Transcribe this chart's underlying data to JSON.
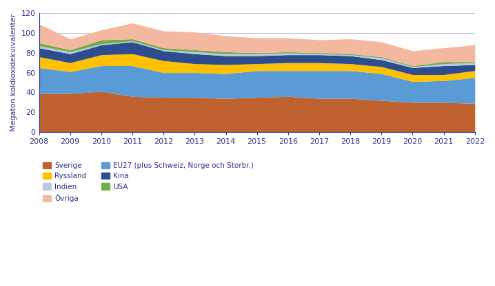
{
  "years": [
    2008,
    2009,
    2010,
    2011,
    2012,
    2013,
    2014,
    2015,
    2016,
    2017,
    2018,
    2019,
    2020,
    2021,
    2022
  ],
  "series": {
    "Sverige": [
      39,
      39,
      41,
      36,
      35,
      35,
      34,
      35,
      36,
      34,
      34,
      32,
      30,
      30,
      29
    ],
    "EU27": [
      26,
      22,
      26,
      31,
      25,
      25,
      25,
      27,
      26,
      28,
      28,
      27,
      21,
      22,
      26
    ],
    "Ryssland": [
      11,
      9,
      11,
      12,
      12,
      9,
      9,
      7,
      8,
      8,
      7,
      7,
      7,
      6,
      7
    ],
    "Kina": [
      9,
      9,
      10,
      12,
      10,
      10,
      9,
      8,
      8,
      8,
      8,
      7,
      7,
      9,
      6
    ],
    "Indien": [
      2,
      2,
      1,
      1,
      1,
      2,
      2,
      2,
      2,
      1,
      1,
      2,
      1,
      2,
      2
    ],
    "USA": [
      3,
      2,
      4,
      2,
      2,
      2,
      2,
      1,
      1,
      1,
      1,
      1,
      1,
      2,
      1
    ],
    "Ovriga": [
      19,
      11,
      10,
      16,
      17,
      18,
      16,
      15,
      14,
      13,
      15,
      15,
      15,
      14,
      17
    ]
  },
  "colors": {
    "Sverige": "#c0622f",
    "EU27": "#5b9bd5",
    "Ryssland": "#ffc000",
    "Kina": "#2e4d8e",
    "Indien": "#b8c9e1",
    "USA": "#70ad47",
    "Ovriga": "#f4b8a0"
  },
  "labels": {
    "Sverige": "Sverige",
    "EU27": "EU27 (plus Schweiz, Norge och Storbr.)",
    "Ryssland": "Ryssland",
    "Kina": "Kina",
    "Indien": "Indien",
    "USA": "USA",
    "Ovriga": "Övriga"
  },
  "ylabel": "Megaton koldioxidekvivalenter",
  "ylim": [
    0,
    120
  ],
  "yticks": [
    0,
    20,
    40,
    60,
    80,
    100,
    120
  ],
  "axis_color": "#2e2e8c",
  "grid_color": "#a0a0d0",
  "background_color": "#ffffff"
}
